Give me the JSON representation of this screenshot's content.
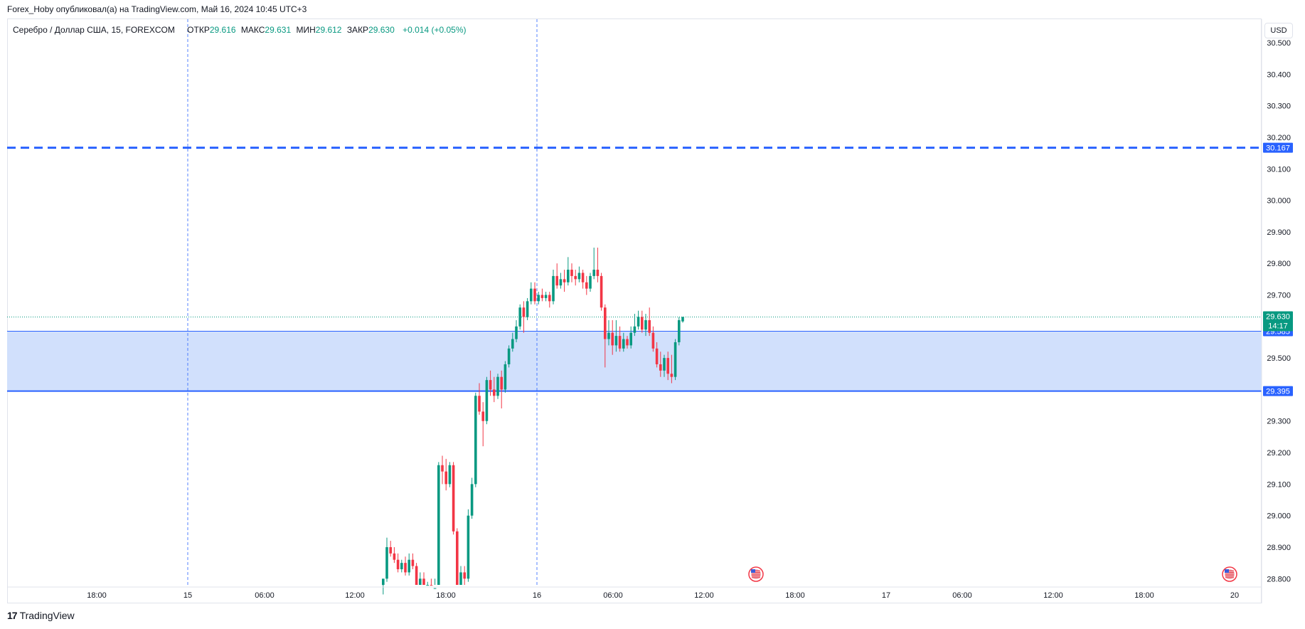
{
  "header": {
    "published_text": "Forex_Hoby опубликовал(а) на TradingView.com, Май 16, 2024 10:45 UTC+3"
  },
  "legend": {
    "symbol": "Серебро / Доллар США, 15, FOREXCOM",
    "open_label": "ОТКР",
    "open_value": "29.616",
    "high_label": "МАКС",
    "high_value": "29.631",
    "low_label": "МИН",
    "low_value": "29.612",
    "close_label": "ЗАКР",
    "close_value": "29.630",
    "change": "+0.014 (+0.05%)"
  },
  "currency_button": "USD",
  "footer": {
    "logo_mark": "17",
    "brand": "TradingView"
  },
  "colors": {
    "up": "#089981",
    "down": "#f23645",
    "line_blue": "#2962ff",
    "zone_fill": "#d1e0fc",
    "grid_dash": "#2962ff"
  },
  "chart_data": {
    "type": "candlestick",
    "symbol": "XAGUSD",
    "timeframe": "15",
    "y_axis": {
      "range": [
        28.76,
        30.57
      ],
      "ticks": [
        "30.500",
        "30.400",
        "30.300",
        "30.200",
        "30.100",
        "30.000",
        "29.900",
        "29.800",
        "29.700",
        "29.500",
        "29.300",
        "29.200",
        "29.100",
        "29.000",
        "28.900",
        "28.800"
      ]
    },
    "x_axis": {
      "ticks": [
        "18:00",
        "15",
        "06:00",
        "12:00",
        "18:00",
        "16",
        "06:00",
        "12:00",
        "18:00",
        "17",
        "06:00",
        "12:00",
        "18:00",
        "20"
      ]
    },
    "session_separators": [
      "15",
      "16"
    ],
    "horizontal_lines": [
      {
        "value": 30.167,
        "label": "30.167",
        "style": "dashed"
      },
      {
        "value": 29.585,
        "label": "29.585",
        "style": "solid"
      },
      {
        "value": 29.395,
        "label": "29.395",
        "style": "solid"
      }
    ],
    "zone": {
      "from": 29.395,
      "to": 29.585
    },
    "last_price": {
      "value": 29.63,
      "label": "29.630",
      "countdown": "14:17"
    },
    "event_markers": [
      "us-flag-icon",
      "us-flag-icon"
    ],
    "candles": [
      [
        28.78,
        28.8,
        28.75,
        28.74
      ],
      [
        28.8,
        28.9,
        28.93,
        28.79
      ],
      [
        28.9,
        28.88,
        28.92,
        28.87
      ],
      [
        28.88,
        28.86,
        28.9,
        28.85
      ],
      [
        28.86,
        28.83,
        28.88,
        28.82
      ],
      [
        28.83,
        28.85,
        28.86,
        28.82
      ],
      [
        28.85,
        28.82,
        28.87,
        28.81
      ],
      [
        28.82,
        28.86,
        28.88,
        28.81
      ],
      [
        28.86,
        28.84,
        28.88,
        28.83
      ],
      [
        28.84,
        28.78,
        28.85,
        28.77
      ],
      [
        28.78,
        28.8,
        28.82,
        28.77
      ],
      [
        28.8,
        28.76,
        28.82,
        28.75
      ],
      [
        28.76,
        28.78,
        28.79,
        28.72
      ],
      [
        28.78,
        28.75,
        28.8,
        28.73
      ],
      [
        28.75,
        28.77,
        28.8,
        28.74
      ],
      [
        28.77,
        29.16,
        29.17,
        28.76
      ],
      [
        29.16,
        29.14,
        29.19,
        29.1
      ],
      [
        29.14,
        29.1,
        29.18,
        29.08
      ],
      [
        29.1,
        29.16,
        29.17,
        29.09
      ],
      [
        29.16,
        28.95,
        29.17,
        28.94
      ],
      [
        28.95,
        28.75,
        28.96,
        28.73
      ],
      [
        28.75,
        28.82,
        28.84,
        28.74
      ],
      [
        28.82,
        28.8,
        28.84,
        28.75
      ],
      [
        28.8,
        29.0,
        29.02,
        28.79
      ],
      [
        29.0,
        29.1,
        29.12,
        28.99
      ],
      [
        29.1,
        29.38,
        29.39,
        29.09
      ],
      [
        29.38,
        29.33,
        29.42,
        29.32
      ],
      [
        29.33,
        29.3,
        29.36,
        29.22
      ],
      [
        29.3,
        29.43,
        29.44,
        29.29
      ],
      [
        29.43,
        29.4,
        29.46,
        29.38
      ],
      [
        29.4,
        29.38,
        29.44,
        29.36
      ],
      [
        29.38,
        29.44,
        29.45,
        29.37
      ],
      [
        29.44,
        29.4,
        29.46,
        29.34
      ],
      [
        29.4,
        29.48,
        29.49,
        29.39
      ],
      [
        29.48,
        29.53,
        29.54,
        29.47
      ],
      [
        29.53,
        29.56,
        29.58,
        29.52
      ],
      [
        29.56,
        29.6,
        29.62,
        29.55
      ],
      [
        29.6,
        29.66,
        29.67,
        29.59
      ],
      [
        29.66,
        29.63,
        29.68,
        29.58
      ],
      [
        29.63,
        29.68,
        29.69,
        29.62
      ],
      [
        29.68,
        29.72,
        29.74,
        29.67
      ],
      [
        29.72,
        29.68,
        29.74,
        29.67
      ],
      [
        29.68,
        29.7,
        29.71,
        29.67
      ],
      [
        29.7,
        29.69,
        29.72,
        29.68
      ],
      [
        29.69,
        29.7,
        29.71,
        29.68
      ],
      [
        29.7,
        29.68,
        29.71,
        29.66
      ],
      [
        29.68,
        29.76,
        29.78,
        29.67
      ],
      [
        29.76,
        29.73,
        29.8,
        29.72
      ],
      [
        29.73,
        29.75,
        29.77,
        29.72
      ],
      [
        29.75,
        29.74,
        29.78,
        29.71
      ],
      [
        29.74,
        29.78,
        29.82,
        29.73
      ],
      [
        29.78,
        29.76,
        29.8,
        29.74
      ],
      [
        29.76,
        29.75,
        29.78,
        29.73
      ],
      [
        29.75,
        29.77,
        29.79,
        29.74
      ],
      [
        29.77,
        29.74,
        29.78,
        29.72
      ],
      [
        29.74,
        29.72,
        29.76,
        29.7
      ],
      [
        29.72,
        29.76,
        29.77,
        29.71
      ],
      [
        29.76,
        29.78,
        29.85,
        29.75
      ],
      [
        29.78,
        29.76,
        29.85,
        29.74
      ],
      [
        29.76,
        29.66,
        29.77,
        29.65
      ],
      [
        29.66,
        29.56,
        29.67,
        29.47
      ],
      [
        29.56,
        29.58,
        29.62,
        29.54
      ],
      [
        29.58,
        29.54,
        29.62,
        29.51
      ],
      [
        29.54,
        29.57,
        29.62,
        29.52
      ],
      [
        29.57,
        29.53,
        29.6,
        29.52
      ],
      [
        29.53,
        29.56,
        29.58,
        29.52
      ],
      [
        29.56,
        29.54,
        29.57,
        29.53
      ],
      [
        29.54,
        29.58,
        29.6,
        29.53
      ],
      [
        29.58,
        29.6,
        29.64,
        29.57
      ],
      [
        29.6,
        29.63,
        29.65,
        29.59
      ],
      [
        29.63,
        29.59,
        29.65,
        29.58
      ],
      [
        29.59,
        29.62,
        29.64,
        29.57
      ],
      [
        29.62,
        29.58,
        29.66,
        29.57
      ],
      [
        29.58,
        29.53,
        29.6,
        29.52
      ],
      [
        29.53,
        29.48,
        29.55,
        29.47
      ],
      [
        29.48,
        29.46,
        29.52,
        29.44
      ],
      [
        29.46,
        29.5,
        29.51,
        29.44
      ],
      [
        29.5,
        29.45,
        29.52,
        29.43
      ],
      [
        29.45,
        29.44,
        29.51,
        29.42
      ],
      [
        29.44,
        29.55,
        29.56,
        29.43
      ],
      [
        29.55,
        29.62,
        29.63,
        29.54
      ],
      [
        29.616,
        29.63,
        29.631,
        29.612
      ]
    ]
  }
}
